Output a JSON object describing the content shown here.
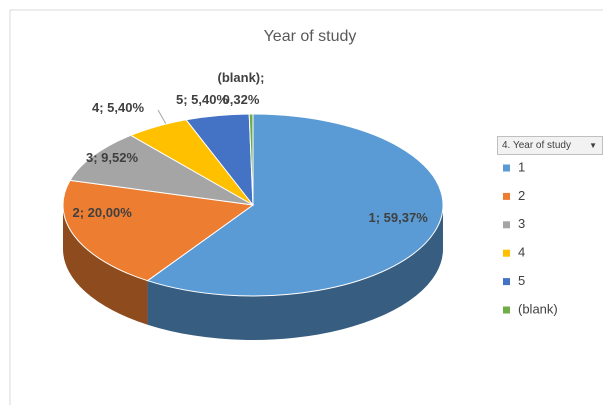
{
  "chart_data": {
    "type": "pie3d",
    "title": "Year of study",
    "legend_title": "4. Year of study",
    "categories": [
      "1",
      "2",
      "3",
      "4",
      "5",
      "(blank)"
    ],
    "values": [
      59.37,
      20.0,
      9.52,
      5.4,
      5.4,
      0.32
    ],
    "value_labels": [
      "1; 59,37%",
      "2; 20,00%",
      "3; 9,52%",
      "4; 5,40%",
      "5; 5,40%",
      "(blank); 0,32%"
    ],
    "colors": [
      "#5b9bd5",
      "#ed7d31",
      "#a5a5a5",
      "#ffc000",
      "#4472c4",
      "#70ad47"
    ],
    "legend": "right"
  }
}
